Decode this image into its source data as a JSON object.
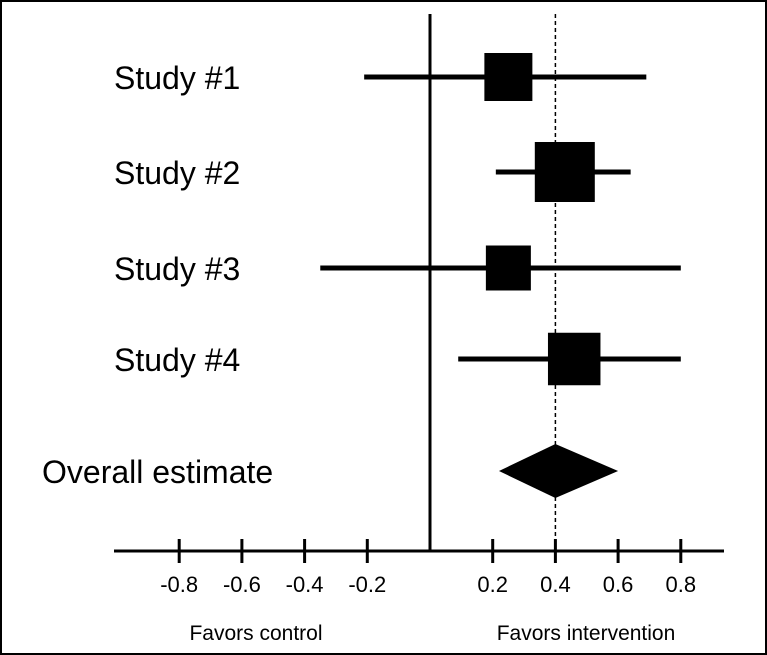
{
  "chart_data": {
    "type": "forest",
    "xlim": [
      -1.0,
      0.9
    ],
    "ticks": [
      {
        "value": -0.8,
        "label": "-0.8"
      },
      {
        "value": -0.6,
        "label": "-0.6"
      },
      {
        "value": -0.4,
        "label": "-0.4"
      },
      {
        "value": -0.2,
        "label": "-0.2"
      },
      {
        "value": 0.2,
        "label": "0.2"
      },
      {
        "value": 0.4,
        "label": "0.4"
      },
      {
        "value": 0.6,
        "label": "0.6"
      },
      {
        "value": 0.8,
        "label": "0.8"
      }
    ],
    "null_line": 0.0,
    "reference_line": 0.4,
    "xlabel_left": "Favors control",
    "xlabel_right": "Favors intervention",
    "studies": [
      {
        "label": "Study #1",
        "estimate": 0.25,
        "lower": -0.21,
        "upper": 0.69,
        "relative_weight": 0.6
      },
      {
        "label": "Study #2",
        "estimate": 0.43,
        "lower": 0.21,
        "upper": 0.64,
        "relative_weight": 1.0
      },
      {
        "label": "Study #3",
        "estimate": 0.25,
        "lower": -0.35,
        "upper": 0.8,
        "relative_weight": 0.5
      },
      {
        "label": "Study #4",
        "estimate": 0.46,
        "lower": 0.09,
        "upper": 0.8,
        "relative_weight": 0.75
      }
    ],
    "overall": {
      "label": "Overall estimate",
      "estimate": 0.4,
      "lower": 0.22,
      "upper": 0.6
    }
  }
}
